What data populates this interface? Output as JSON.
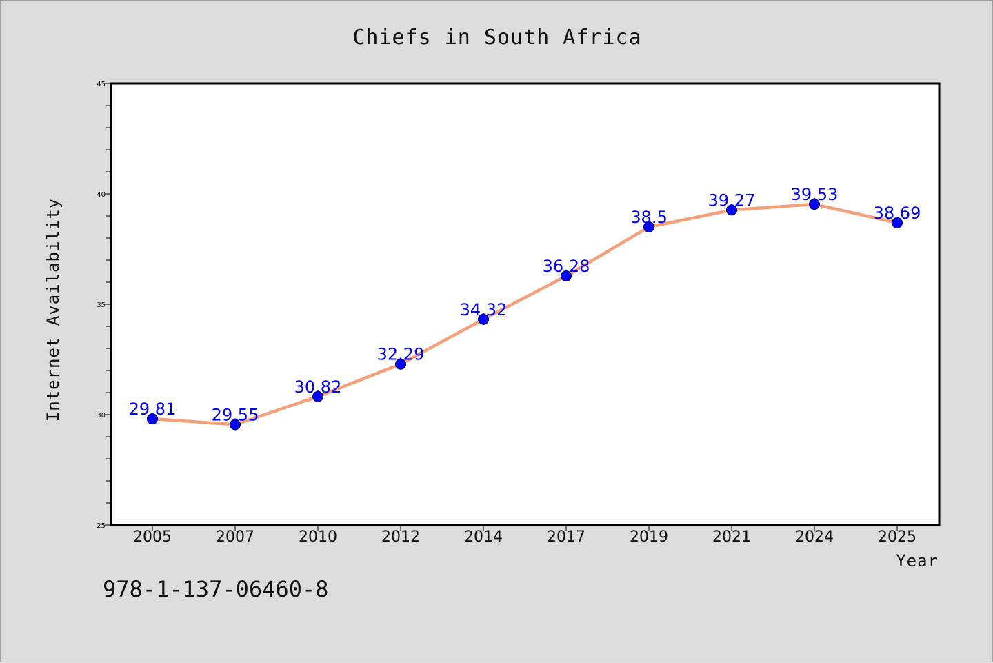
{
  "chart_data": {
    "type": "line",
    "title": "Chiefs in South Africa",
    "xlabel": "Year",
    "ylabel": "Internet Availability",
    "categories": [
      "2005",
      "2007",
      "2010",
      "2012",
      "2014",
      "2017",
      "2019",
      "2021",
      "2024",
      "2025"
    ],
    "series": [
      {
        "values": [
          29.81,
          29.55,
          30.82,
          32.29,
          34.32,
          36.28,
          38.5,
          39.27,
          39.53,
          38.69
        ],
        "labels": [
          "29.81",
          "29.55",
          "30.82",
          "32.29",
          "34.32",
          "36.28",
          "38.5",
          "39.27",
          "39.53",
          "38.69"
        ],
        "line_color": "#f4a07a",
        "marker_color": "#0000ff"
      }
    ],
    "ylim": [
      25,
      45
    ],
    "yticks": [
      "25",
      "30",
      "35",
      "40",
      "45"
    ],
    "grid": false,
    "legend": "none"
  },
  "footnote": "978-1-137-06460-8",
  "colors": {
    "background": "#dcdcdc",
    "plot_background": "#ffffff",
    "line": "#f4a07a",
    "marker": "#0000ff",
    "data_label": "#0000ff"
  }
}
